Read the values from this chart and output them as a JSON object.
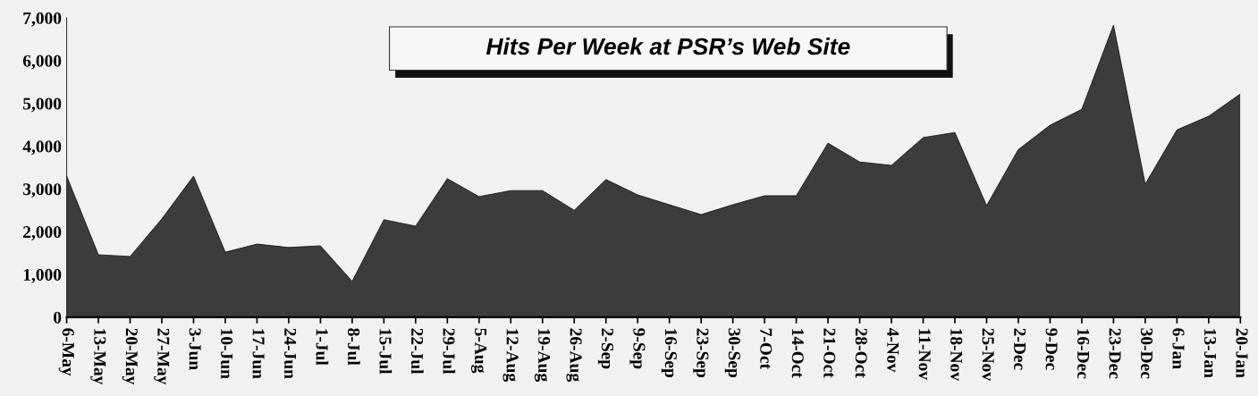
{
  "chart_data": {
    "type": "area",
    "title": "Hits Per Week at PSR’s Web Site",
    "categories": [
      "6-May",
      "13-May",
      "20-May",
      "27-May",
      "3-Jun",
      "10-Jun",
      "17-Jun",
      "24-Jun",
      "1-Jul",
      "8-Jul",
      "15-Jul",
      "22-Jul",
      "29-Jul",
      "5-Aug",
      "12-Aug",
      "19-Aug",
      "26-Aug",
      "2-Sep",
      "9-Sep",
      "16-Sep",
      "23-Sep",
      "30-Sep",
      "7-Oct",
      "14-Oct",
      "21-Oct",
      "28-Oct",
      "4-Nov",
      "11-Nov",
      "18-Nov",
      "25-Nov",
      "2-Dec",
      "9-Dec",
      "16-Dec",
      "23-Dec",
      "30-Dec",
      "6-Jan",
      "13-Jan",
      "20-Jan"
    ],
    "values": [
      3300,
      1460,
      1420,
      2300,
      3300,
      1520,
      1710,
      1630,
      1670,
      840,
      2280,
      2130,
      3240,
      2820,
      2960,
      2960,
      2500,
      3220,
      2860,
      2630,
      2400,
      2630,
      2840,
      2840,
      4070,
      3630,
      3550,
      4200,
      4320,
      2610,
      3920,
      4490,
      4860,
      6830,
      3110,
      4380,
      4700,
      5220
    ],
    "color": "#3c3c3c",
    "ylim": [
      0,
      7000
    ],
    "yticks": [
      {
        "value": 0,
        "label": "0"
      },
      {
        "value": 1000,
        "label": "1,000"
      },
      {
        "value": 2000,
        "label": "2,000"
      },
      {
        "value": 3000,
        "label": "3,000"
      },
      {
        "value": 4000,
        "label": "4,000"
      },
      {
        "value": 5000,
        "label": "5,000"
      },
      {
        "value": 6000,
        "label": "6,000"
      },
      {
        "value": 7000,
        "label": "7,000"
      }
    ],
    "grid": false,
    "legend": false
  }
}
